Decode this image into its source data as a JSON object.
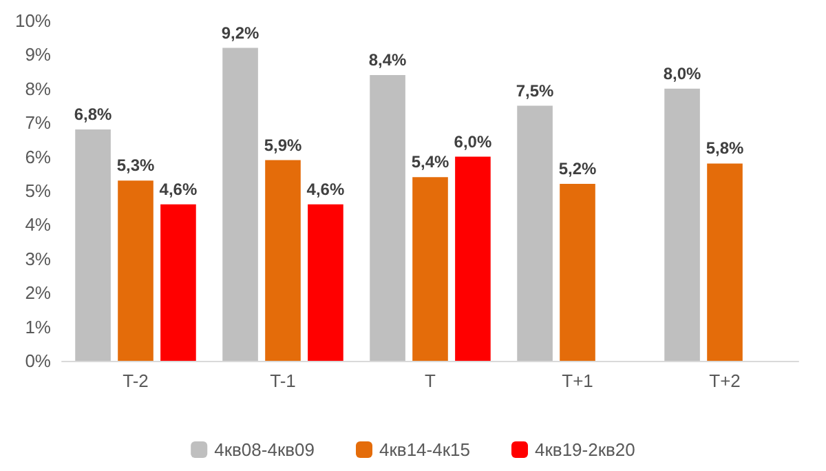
{
  "chart_data": {
    "type": "bar",
    "categories": [
      "T-2",
      "T-1",
      "T",
      "T+1",
      "T+2"
    ],
    "series": [
      {
        "name": "4кв08-4кв09",
        "color": "#bfbfbf",
        "values": [
          6.8,
          9.2,
          8.4,
          7.5,
          8.0
        ],
        "value_labels": [
          "6,8%",
          "9,2%",
          "8,4%",
          "7,5%",
          "8,0%"
        ]
      },
      {
        "name": "4кв14-4к15",
        "color": "#e46c0a",
        "values": [
          5.3,
          5.9,
          5.4,
          5.2,
          5.8
        ],
        "value_labels": [
          "5,3%",
          "5,9%",
          "5,4%",
          "5,2%",
          "5,8%"
        ]
      },
      {
        "name": "4кв19-2кв20",
        "color": "#ff0000",
        "values": [
          4.6,
          4.6,
          6.0,
          null,
          null
        ],
        "value_labels": [
          "4,6%",
          "4,6%",
          "6,0%",
          null,
          null
        ]
      }
    ],
    "ylim": [
      0,
      10
    ],
    "yticks": [
      {
        "value": 0,
        "label": "0%"
      },
      {
        "value": 1,
        "label": "1%"
      },
      {
        "value": 2,
        "label": "2%"
      },
      {
        "value": 3,
        "label": "3%"
      },
      {
        "value": 4,
        "label": "4%"
      },
      {
        "value": 5,
        "label": "5%"
      },
      {
        "value": 6,
        "label": "6%"
      },
      {
        "value": 7,
        "label": "7%"
      },
      {
        "value": 8,
        "label": "8%"
      },
      {
        "value": 9,
        "label": "9%"
      },
      {
        "value": 10,
        "label": "10%"
      }
    ],
    "grid": false,
    "legend": "bottom"
  }
}
